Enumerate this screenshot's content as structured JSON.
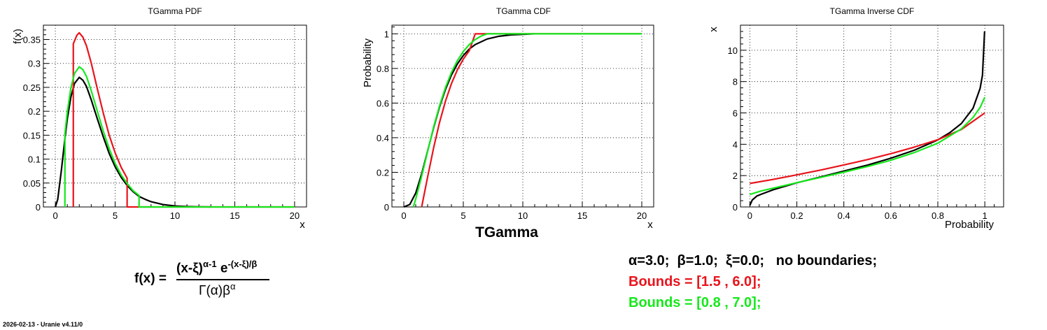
{
  "colors": {
    "black": "#000000",
    "red": "#e8141c",
    "green": "#16e81c",
    "grid": "#000000"
  },
  "chart_data": [
    {
      "type": "line",
      "title": "TGamma PDF",
      "xlabel": "x",
      "ylabel": "f(x)",
      "xlim": [
        -1,
        21
      ],
      "ylim": [
        0,
        0.38
      ],
      "xticks": [
        0,
        5,
        10,
        15,
        20
      ],
      "yticks": [
        0,
        0.05,
        0.1,
        0.15,
        0.2,
        0.25,
        0.3,
        0.35
      ],
      "grid": true,
      "series": [
        {
          "color": "black",
          "x": [
            0,
            0.2,
            0.5,
            0.8,
            1.0,
            1.3,
            1.6,
            2.0,
            2.3,
            2.6,
            3.0,
            3.5,
            4.0,
            4.5,
            5.0,
            5.5,
            6.0,
            6.5,
            7.0,
            7.5,
            8.0,
            9.0,
            10.0,
            11.0,
            12.0,
            13.0
          ],
          "y": [
            0,
            0.016,
            0.076,
            0.143,
            0.184,
            0.23,
            0.258,
            0.271,
            0.265,
            0.252,
            0.224,
            0.185,
            0.147,
            0.112,
            0.084,
            0.062,
            0.045,
            0.032,
            0.022,
            0.016,
            0.011,
            0.005,
            0.002,
            0.001,
            0.0004,
            0
          ]
        },
        {
          "color": "red",
          "x": [
            1.5,
            1.5,
            1.8,
            2.0,
            2.3,
            2.6,
            3.0,
            3.5,
            4.0,
            4.5,
            5.0,
            5.5,
            6.0,
            6.0,
            20.0
          ],
          "y": [
            0,
            0.341,
            0.359,
            0.364,
            0.355,
            0.337,
            0.301,
            0.248,
            0.197,
            0.15,
            0.113,
            0.083,
            0.06,
            0,
            0
          ]
        },
        {
          "color": "green",
          "x": [
            0.8,
            0.8,
            1.0,
            1.3,
            1.6,
            2.0,
            2.3,
            2.6,
            3.0,
            3.5,
            4.0,
            4.5,
            5.0,
            5.5,
            6.0,
            6.5,
            7.0,
            7.0,
            20.0
          ],
          "y": [
            0,
            0.153,
            0.199,
            0.249,
            0.279,
            0.293,
            0.287,
            0.273,
            0.243,
            0.201,
            0.159,
            0.122,
            0.091,
            0.067,
            0.049,
            0.034,
            0.024,
            0,
            0
          ]
        }
      ]
    },
    {
      "type": "line",
      "title": "TGamma CDF",
      "xlabel": "x",
      "ylabel": "Probability",
      "bottom_label": "TGamma",
      "xlim": [
        -1,
        21
      ],
      "ylim": [
        0,
        1.05
      ],
      "xticks": [
        0,
        5,
        10,
        15,
        20
      ],
      "yticks": [
        0,
        0.2,
        0.4,
        0.6,
        0.8,
        1
      ],
      "grid": true,
      "series": [
        {
          "color": "black",
          "x": [
            0,
            0.5,
            1.0,
            1.5,
            2.0,
            2.5,
            3.0,
            3.5,
            4.0,
            4.5,
            5.0,
            5.5,
            6.0,
            7.0,
            8.0,
            9.0,
            10.0,
            11.0
          ],
          "y": [
            0,
            0.014,
            0.08,
            0.191,
            0.323,
            0.456,
            0.577,
            0.679,
            0.762,
            0.826,
            0.875,
            0.912,
            0.938,
            0.97,
            0.986,
            0.994,
            0.997,
            1.0
          ]
        },
        {
          "color": "red",
          "x": [
            1.5,
            2.0,
            2.5,
            3.0,
            3.5,
            4.0,
            4.5,
            5.0,
            5.5,
            6.0,
            20.0
          ],
          "y": [
            0,
            0.173,
            0.34,
            0.488,
            0.611,
            0.712,
            0.792,
            0.854,
            0.902,
            1.0,
            1.0
          ]
        },
        {
          "color": "green",
          "x": [
            0.8,
            1.0,
            1.5,
            2.0,
            2.5,
            3.0,
            3.5,
            4.0,
            4.5,
            5.0,
            5.5,
            6.0,
            6.5,
            7.0,
            8.0,
            20.0
          ],
          "y": [
            0,
            0.046,
            0.178,
            0.32,
            0.461,
            0.584,
            0.69,
            0.777,
            0.845,
            0.898,
            0.938,
            0.967,
            0.987,
            1.0,
            1.0,
            1.0
          ]
        }
      ]
    },
    {
      "type": "line",
      "title": "TGamma Inverse CDF",
      "xlabel": "Probability",
      "ylabel": "x",
      "xlim": [
        -0.04,
        1.08
      ],
      "ylim": [
        0,
        11.6
      ],
      "xticks": [
        0,
        0.2,
        0.4,
        0.6,
        0.8,
        1
      ],
      "yticks": [
        0,
        2,
        4,
        6,
        8,
        10
      ],
      "grid": true,
      "series": [
        {
          "color": "black",
          "x": [
            0.0,
            0.01,
            0.03,
            0.05,
            0.1,
            0.2,
            0.3,
            0.4,
            0.5,
            0.6,
            0.7,
            0.8,
            0.85,
            0.9,
            0.95,
            0.98,
            0.99,
            0.999
          ],
          "y": [
            0.1,
            0.44,
            0.7,
            0.82,
            1.1,
            1.54,
            1.91,
            2.29,
            2.67,
            3.11,
            3.62,
            4.28,
            4.73,
            5.32,
            6.3,
            7.57,
            8.4,
            11.2
          ]
        },
        {
          "color": "red",
          "x": [
            0.0,
            0.1,
            0.2,
            0.3,
            0.4,
            0.5,
            0.6,
            0.7,
            0.8,
            0.9,
            1.0
          ],
          "y": [
            1.5,
            1.76,
            2.05,
            2.35,
            2.68,
            3.02,
            3.4,
            3.82,
            4.29,
            4.94,
            6.0
          ]
        },
        {
          "color": "green",
          "x": [
            0.0,
            0.05,
            0.1,
            0.2,
            0.3,
            0.4,
            0.5,
            0.6,
            0.7,
            0.8,
            0.9,
            0.95,
            0.98,
            1.0
          ],
          "y": [
            0.8,
            1.03,
            1.2,
            1.55,
            1.88,
            2.22,
            2.58,
            2.98,
            3.47,
            4.07,
            4.98,
            5.71,
            6.35,
            7.0
          ]
        }
      ]
    }
  ],
  "formula": {
    "lhs": "f(x) =",
    "num_base": "(x-ξ)",
    "num_exp": "α-1",
    "num_e": " e",
    "num_e_exp": "-(x-ξ)/β",
    "den": "Γ(α)β",
    "den_exp": "α"
  },
  "params": {
    "line1": "α=3.0;  β=1.0;  ξ=0.0;   no boundaries;",
    "line2": "Bounds = [1.5 , 6.0];",
    "line3": "Bounds = [0.8 , 7.0];"
  },
  "footer": "2026-02-13 - Uranie v4.11/0"
}
